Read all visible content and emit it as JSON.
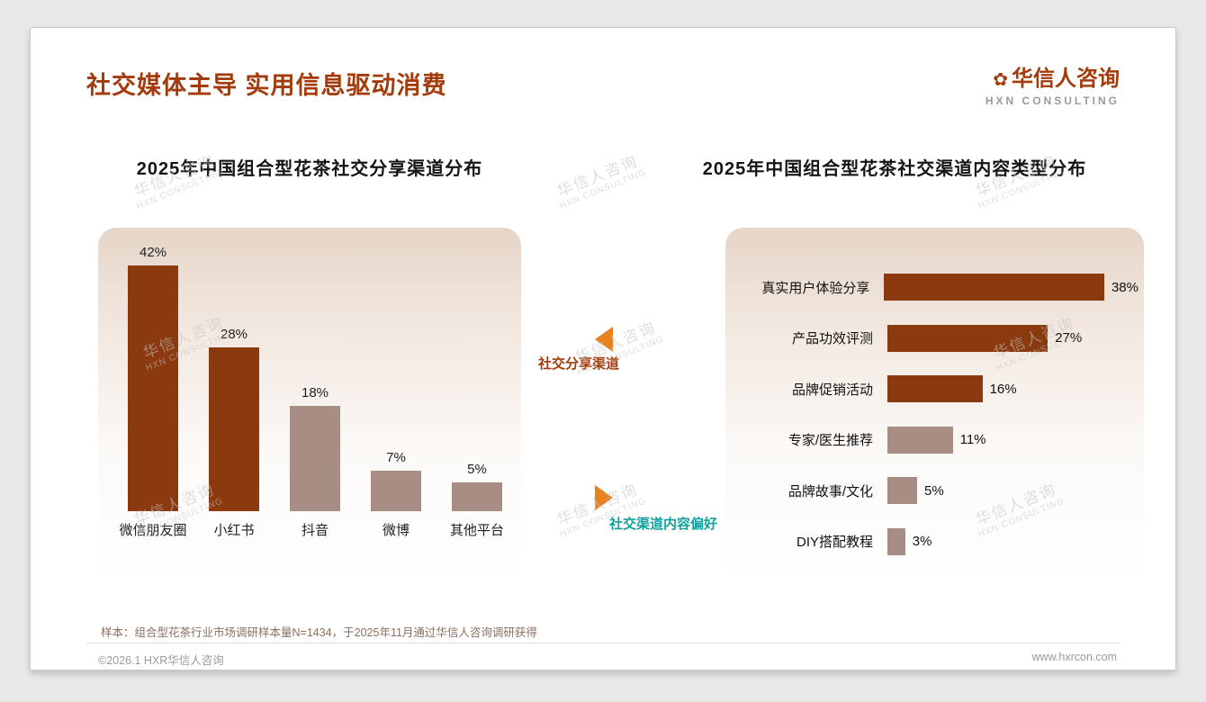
{
  "header": {
    "title": "社交媒体主导 实用信息驱动消费",
    "logo": {
      "cn": "华信人咨询",
      "en": "HXN CONSULTING"
    }
  },
  "watermark": {
    "line1": "华信人咨询",
    "line2": "HXN CONSULTING"
  },
  "annotations": {
    "share_channel_label": "社交分享渠道",
    "content_preference_label": "社交渠道内容偏好"
  },
  "chart_data": [
    {
      "type": "bar",
      "orientation": "vertical",
      "title": "2025年中国组合型花茶社交分享渠道分布",
      "categories": [
        "微信朋友圈",
        "小红书",
        "抖音",
        "微博",
        "其他平台"
      ],
      "values": [
        42,
        28,
        18,
        7,
        5
      ],
      "unit": "%",
      "ylim": [
        0,
        45
      ],
      "grid": false,
      "highlight_count": 2
    },
    {
      "type": "bar",
      "orientation": "horizontal",
      "title": "2025年中国组合型花茶社交渠道内容类型分布",
      "categories": [
        "真实用户体验分享",
        "产品功效评测",
        "品牌促销活动",
        "专家/医生推荐",
        "品牌故事/文化",
        "DIY搭配教程"
      ],
      "values": [
        38,
        27,
        16,
        11,
        5,
        3
      ],
      "unit": "%",
      "xlim": [
        0,
        40
      ],
      "grid": false,
      "highlight_count": 3
    }
  ],
  "footer": {
    "note": "样本：组合型花茶行业市场调研样本量N=1434，于2025年11月通过华信人咨询调研获得",
    "copyright": "©2026.1 HXR华信人咨询",
    "website": "www.hxrcon.com"
  },
  "colors": {
    "accent": "#A33B0C",
    "bar-dark": "#8B3A0F",
    "bar-light": "#A88D85",
    "arrow-orange": "#E8821E",
    "teal": "#12A19E",
    "watermark-gray": "#C4C4C4"
  }
}
